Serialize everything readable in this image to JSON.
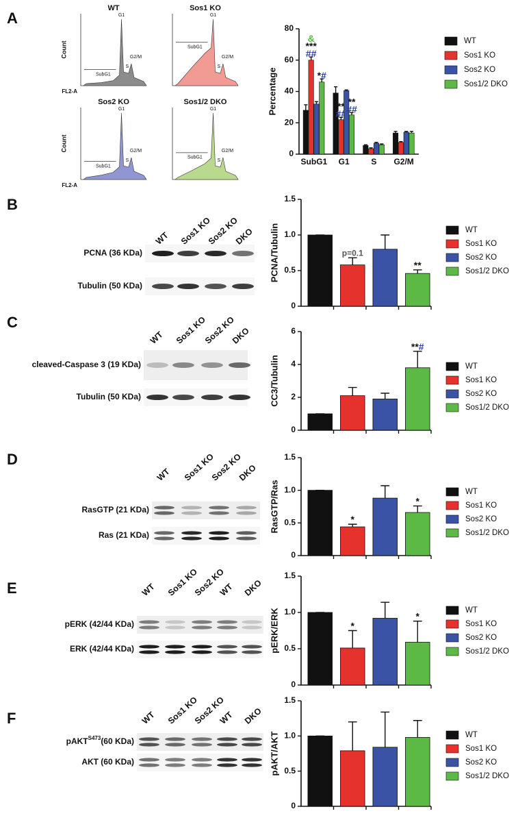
{
  "panels": [
    "A",
    "B",
    "C",
    "D",
    "E",
    "F"
  ],
  "flow": {
    "plots": [
      {
        "title": "WT",
        "color": "#8c8c8c"
      },
      {
        "title": "Sos1 KO",
        "color": "#f29a94"
      },
      {
        "title": "Sos2 KO",
        "color": "#9096d2"
      },
      {
        "title": "Sos1/2 DKO",
        "color": "#b9d98f"
      }
    ],
    "ylabel": "Count",
    "xlabel": "FL2-A",
    "peaks": [
      "SubG1",
      "G1",
      "S",
      "G2/M"
    ]
  },
  "blots": [
    {
      "lanes": [
        "WT",
        "Sos1 KO",
        "Sos2 KO",
        "DKO"
      ],
      "rows": [
        {
          "label": "PCNA (36 KDa)"
        },
        {
          "label": "Tubulin (50 KDa)"
        }
      ]
    },
    {
      "lanes": [
        "WT",
        "Sos1 KO",
        "Sos2 KO",
        "DKO"
      ],
      "rows": [
        {
          "label": "cleaved-Caspase 3 (19 KDa)"
        },
        {
          "label": "Tubulin (50 KDa)"
        }
      ]
    },
    {
      "lanes": [
        "WT",
        "Sos1 KO",
        "Sos2 KO",
        "DKO"
      ],
      "rows": [
        {
          "label": "RasGTP (21 KDa)"
        },
        {
          "label": "Ras (21 KDa)"
        }
      ]
    },
    {
      "lanes": [
        "WT",
        "Sos1 KO",
        "Sos2 KO",
        "WT",
        "DKO"
      ],
      "rows": [
        {
          "label": "pERK (42/44 KDa)"
        },
        {
          "label": "ERK (42/44 KDa)"
        }
      ]
    },
    {
      "lanes": [
        "WT",
        "Sos1 KO",
        "Sos2 KO",
        "WT",
        "DKO"
      ],
      "rows": [
        {
          "label": "pAKT",
          "sup": "S473",
          "rest": "(60 KDa)"
        },
        {
          "label": "AKT (60 KDa)"
        }
      ]
    }
  ],
  "chart_data": [
    {
      "type": "grouped-bar",
      "ylabel": "Percentage",
      "categories": [
        "SubG1",
        "G1",
        "S",
        "G2/M"
      ],
      "ylim": [
        0,
        80
      ],
      "yticks": [
        0,
        20,
        40,
        60,
        80
      ],
      "series": [
        {
          "name": "WT",
          "color": "#111111",
          "values": [
            28,
            39,
            5.5,
            13.5
          ],
          "errors": [
            3.5,
            4,
            0.5,
            1
          ],
          "annotations": [
            null,
            null,
            null,
            null
          ]
        },
        {
          "name": "Sos1 KO",
          "color": "#e5322d",
          "values": [
            60,
            22,
            3.5,
            7.5
          ],
          "errors": [
            2,
            1.5,
            0.5,
            0.5
          ],
          "annotations": [
            [
              [
                {
                  "text": "##",
                  "color": "#2e3f9e"
                }
              ],
              [
                {
                  "text": "***",
                  "color": "#111111"
                }
              ],
              [
                {
                  "text": "&",
                  "color": "#5cb946"
                }
              ]
            ],
            [
              [
                {
                  "text": "##",
                  "color": "#2e3f9e"
                }
              ],
              [
                {
                  "text": "**",
                  "color": "#111111"
                }
              ]
            ],
            null,
            null
          ]
        },
        {
          "name": "Sos2 KO",
          "color": "#3b53a4",
          "values": [
            32,
            40.5,
            7,
            14
          ],
          "errors": [
            1.5,
            0.5,
            0.5,
            0.5
          ],
          "annotations": [
            null,
            null,
            null,
            null
          ]
        },
        {
          "name": "Sos1/2 DKO",
          "color": "#5cb946",
          "values": [
            46,
            25,
            6,
            13.5
          ],
          "errors": [
            2,
            1.5,
            0.5,
            1
          ],
          "annotations": [
            [
              [
                {
                  "text": "*",
                  "color": "#111111"
                },
                {
                  "text": "#",
                  "color": "#2e3f9e"
                }
              ]
            ],
            [
              [
                {
                  "text": "##",
                  "color": "#2e3f9e"
                }
              ],
              [
                {
                  "text": "**",
                  "color": "#111111"
                }
              ]
            ],
            null,
            null
          ]
        }
      ]
    },
    {
      "type": "bar",
      "ylabel": "PCNA/Tubulin",
      "categories": [
        "WT",
        "Sos1 KO",
        "Sos2 KO",
        "Sos1/2 DKO"
      ],
      "colors": [
        "#111111",
        "#e5322d",
        "#3b53a4",
        "#5cb946"
      ],
      "values": [
        1.0,
        0.58,
        0.8,
        0.46
      ],
      "errors": [
        0,
        0.1,
        0.2,
        0.05
      ],
      "annotations": [
        null,
        [
          [
            {
              "text": "p=0.1",
              "color": "#555555"
            }
          ]
        ],
        null,
        [
          [
            {
              "text": "**",
              "color": "#111111"
            }
          ]
        ]
      ],
      "ylim": [
        0,
        1.5
      ],
      "yticks": [
        0,
        0.5,
        {
          "value": 1,
          "label": "1.0"
        },
        1.5
      ]
    },
    {
      "type": "bar",
      "ylabel": "CC3/Tubulin",
      "categories": [
        "WT",
        "Sos1 KO",
        "Sos2 KO",
        "Sos1/2 DKO"
      ],
      "colors": [
        "#111111",
        "#e5322d",
        "#3b53a4",
        "#5cb946"
      ],
      "values": [
        1.0,
        2.1,
        1.9,
        3.8
      ],
      "errors": [
        0,
        0.5,
        0.35,
        1.0
      ],
      "annotations": [
        null,
        null,
        null,
        [
          [
            {
              "text": "**",
              "color": "#111111"
            },
            {
              "text": "#",
              "color": "#2e3f9e"
            }
          ]
        ]
      ],
      "ylim": [
        0,
        6
      ],
      "yticks": [
        0,
        2,
        4,
        6
      ]
    },
    {
      "type": "bar",
      "ylabel": "RasGTP/Ras",
      "categories": [
        "WT",
        "Sos1 KO",
        "Sos2 KO",
        "Sos1/2 DKO"
      ],
      "colors": [
        "#111111",
        "#e5322d",
        "#3b53a4",
        "#5cb946"
      ],
      "values": [
        1.0,
        0.44,
        0.88,
        0.66
      ],
      "errors": [
        0,
        0.04,
        0.19,
        0.1
      ],
      "annotations": [
        null,
        [
          [
            {
              "text": "*",
              "color": "#111111"
            }
          ]
        ],
        null,
        [
          [
            {
              "text": "*",
              "color": "#111111"
            }
          ]
        ]
      ],
      "ylim": [
        0,
        1.5
      ],
      "yticks": [
        0,
        0.5,
        {
          "value": 1,
          "label": "1.0"
        },
        1.5
      ]
    },
    {
      "type": "bar",
      "ylabel": "pERK/ERK",
      "categories": [
        "WT",
        "Sos1 KO",
        "Sos2 KO",
        "Sos1/2 DKO"
      ],
      "colors": [
        "#111111",
        "#e5322d",
        "#3b53a4",
        "#5cb946"
      ],
      "values": [
        1.0,
        0.51,
        0.92,
        0.59
      ],
      "errors": [
        0,
        0.24,
        0.22,
        0.29
      ],
      "annotations": [
        null,
        [
          [
            {
              "text": "*",
              "color": "#111111"
            }
          ]
        ],
        null,
        [
          [
            {
              "text": "*",
              "color": "#111111"
            }
          ]
        ]
      ],
      "ylim": [
        0,
        1.5
      ],
      "yticks": [
        0,
        0.5,
        {
          "value": 1,
          "label": "1.0"
        },
        1.5
      ]
    },
    {
      "type": "bar",
      "ylabel": "pAKT/AKT",
      "categories": [
        "WT",
        "Sos1 KO",
        "Sos2 KO",
        "Sos1/2 DKO"
      ],
      "colors": [
        "#111111",
        "#e5322d",
        "#3b53a4",
        "#5cb946"
      ],
      "values": [
        1.0,
        0.79,
        0.84,
        0.98
      ],
      "errors": [
        0,
        0.41,
        0.5,
        0.24
      ],
      "annotations": [
        null,
        null,
        null,
        null
      ],
      "ylim": [
        0,
        1.5
      ],
      "yticks": [
        0,
        0.5,
        {
          "value": 1,
          "label": "1.0"
        },
        1.5
      ]
    }
  ]
}
